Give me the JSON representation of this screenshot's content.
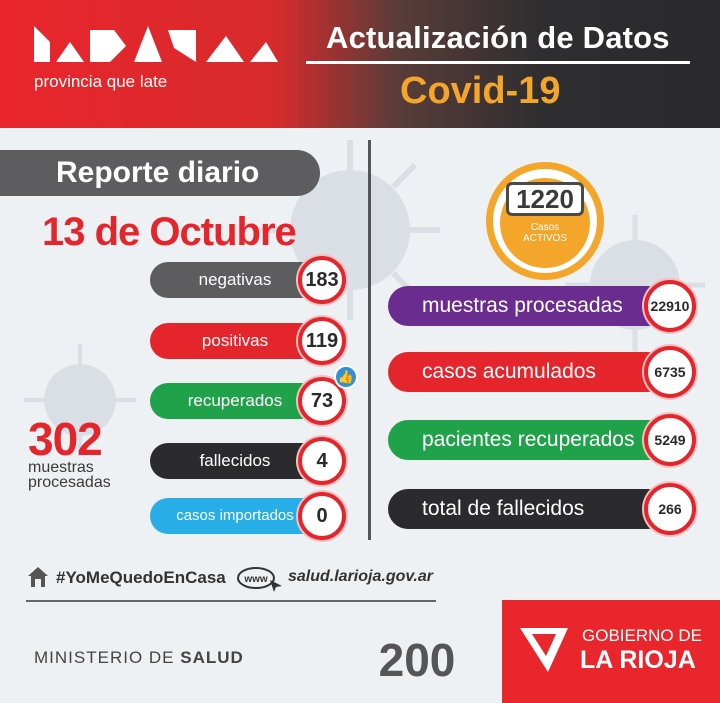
{
  "header": {
    "logo_tagline": "provincia que late",
    "title": "Actualización de Datos",
    "subtitle": "Covid-19"
  },
  "report": {
    "title": "Reporte diario",
    "date": "13 de Octubre"
  },
  "daily_stats": [
    {
      "label": "negativas",
      "value": "183",
      "color": "#5d5d5f"
    },
    {
      "label": "positivas",
      "value": "119",
      "color": "#e4262c"
    },
    {
      "label": "recuperados",
      "value": "73",
      "color": "#1fa24a"
    },
    {
      "label": "fallecidos",
      "value": "4",
      "color": "#2b2b2d"
    },
    {
      "label": "casos importados",
      "value": "0",
      "color": "#27aee6"
    }
  ],
  "daily_total": {
    "value": "302",
    "label_line1": "muestras",
    "label_line2": "procesadas"
  },
  "active_cases": {
    "value": "1220",
    "label_line1": "Casos",
    "label_line2": "ACTIVOS",
    "color": "#f4a62a"
  },
  "cumulative_stats": [
    {
      "label": "muestras procesadas",
      "value": "22910",
      "color": "#6a2c8e"
    },
    {
      "label": "casos acumulados",
      "value": "6735",
      "color": "#e4262c"
    },
    {
      "label": "pacientes recuperados",
      "value": "5249",
      "color": "#1fa24a"
    },
    {
      "label": "total de fallecidos",
      "value": "266",
      "color": "#2b2b2d"
    }
  ],
  "footer": {
    "hashtag": "#YoMeQuedoEnCasa",
    "www_label": "www",
    "website": "salud.larioja.gov.ar",
    "ministry_prefix": "MINISTERIO DE ",
    "ministry_bold": "SALUD",
    "anniversary": "200",
    "gov_top": "GOBIERNO DE",
    "gov_main": "LA RIOJA"
  }
}
